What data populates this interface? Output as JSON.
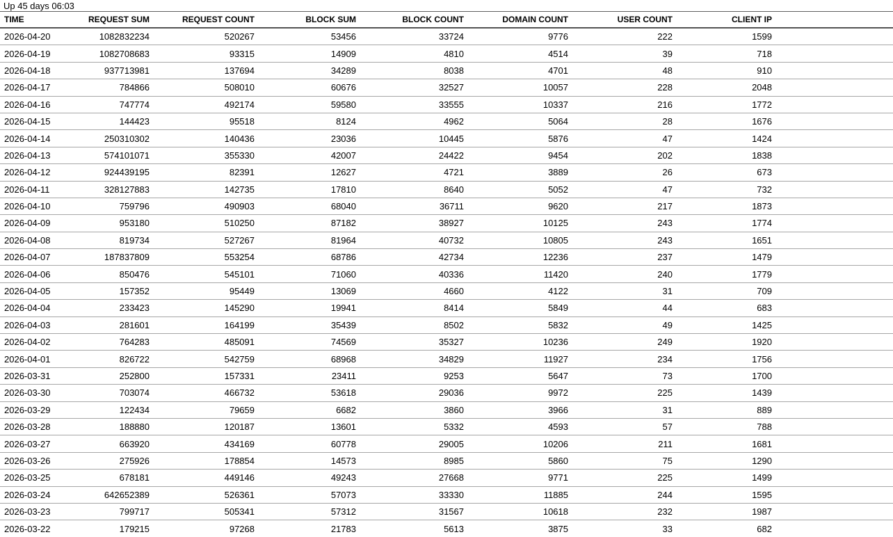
{
  "title": "Up 45 days 06:03",
  "colors": {
    "background": "#ffffff",
    "text": "#000000",
    "title_rule": "#5f5f5f",
    "header_rule": "#525252",
    "row_separator": "#a6a6a6"
  },
  "table": {
    "columns": [
      {
        "id": "time",
        "label": "TIME",
        "align": "left"
      },
      {
        "id": "request-sum",
        "label": "REQUEST SUM",
        "align": "right"
      },
      {
        "id": "request-count",
        "label": "REQUEST COUNT",
        "align": "right"
      },
      {
        "id": "block-sum",
        "label": "BLOCK SUM",
        "align": "right"
      },
      {
        "id": "block-count",
        "label": "BLOCK COUNT",
        "align": "right"
      },
      {
        "id": "domain-count",
        "label": "DOMAIN COUNT",
        "align": "right"
      },
      {
        "id": "user-count",
        "label": "USER COUNT",
        "align": "right"
      },
      {
        "id": "client-ip",
        "label": "CLIENT IP",
        "align": "right"
      }
    ],
    "rows": [
      [
        "2026-04-20",
        "1082832234",
        "520267",
        "53456",
        "33724",
        "9776",
        "222",
        "1599"
      ],
      [
        "2026-04-19",
        "1082708683",
        "93315",
        "14909",
        "4810",
        "4514",
        "39",
        "718"
      ],
      [
        "2026-04-18",
        "937713981",
        "137694",
        "34289",
        "8038",
        "4701",
        "48",
        "910"
      ],
      [
        "2026-04-17",
        "784866",
        "508010",
        "60676",
        "32527",
        "10057",
        "228",
        "2048"
      ],
      [
        "2026-04-16",
        "747774",
        "492174",
        "59580",
        "33555",
        "10337",
        "216",
        "1772"
      ],
      [
        "2026-04-15",
        "144423",
        "95518",
        "8124",
        "4962",
        "5064",
        "28",
        "1676"
      ],
      [
        "2026-04-14",
        "250310302",
        "140436",
        "23036",
        "10445",
        "5876",
        "47",
        "1424"
      ],
      [
        "2026-04-13",
        "574101071",
        "355330",
        "42007",
        "24422",
        "9454",
        "202",
        "1838"
      ],
      [
        "2026-04-12",
        "924439195",
        "82391",
        "12627",
        "4721",
        "3889",
        "26",
        "673"
      ],
      [
        "2026-04-11",
        "328127883",
        "142735",
        "17810",
        "8640",
        "5052",
        "47",
        "732"
      ],
      [
        "2026-04-10",
        "759796",
        "490903",
        "68040",
        "36711",
        "9620",
        "217",
        "1873"
      ],
      [
        "2026-04-09",
        "953180",
        "510250",
        "87182",
        "38927",
        "10125",
        "243",
        "1774"
      ],
      [
        "2026-04-08",
        "819734",
        "527267",
        "81964",
        "40732",
        "10805",
        "243",
        "1651"
      ],
      [
        "2026-04-07",
        "187837809",
        "553254",
        "68786",
        "42734",
        "12236",
        "237",
        "1479"
      ],
      [
        "2026-04-06",
        "850476",
        "545101",
        "71060",
        "40336",
        "11420",
        "240",
        "1779"
      ],
      [
        "2026-04-05",
        "157352",
        "95449",
        "13069",
        "4660",
        "4122",
        "31",
        "709"
      ],
      [
        "2026-04-04",
        "233423",
        "145290",
        "19941",
        "8414",
        "5849",
        "44",
        "683"
      ],
      [
        "2026-04-03",
        "281601",
        "164199",
        "35439",
        "8502",
        "5832",
        "49",
        "1425"
      ],
      [
        "2026-04-02",
        "764283",
        "485091",
        "74569",
        "35327",
        "10236",
        "249",
        "1920"
      ],
      [
        "2026-04-01",
        "826722",
        "542759",
        "68968",
        "34829",
        "11927",
        "234",
        "1756"
      ],
      [
        "2026-03-31",
        "252800",
        "157331",
        "23411",
        "9253",
        "5647",
        "73",
        "1700"
      ],
      [
        "2026-03-30",
        "703074",
        "466732",
        "53618",
        "29036",
        "9972",
        "225",
        "1439"
      ],
      [
        "2026-03-29",
        "122434",
        "79659",
        "6682",
        "3860",
        "3966",
        "31",
        "889"
      ],
      [
        "2026-03-28",
        "188880",
        "120187",
        "13601",
        "5332",
        "4593",
        "57",
        "788"
      ],
      [
        "2026-03-27",
        "663920",
        "434169",
        "60778",
        "29005",
        "10206",
        "211",
        "1681"
      ],
      [
        "2026-03-26",
        "275926",
        "178854",
        "14573",
        "8985",
        "5860",
        "75",
        "1290"
      ],
      [
        "2026-03-25",
        "678181",
        "449146",
        "49243",
        "27668",
        "9771",
        "225",
        "1499"
      ],
      [
        "2026-03-24",
        "642652389",
        "526361",
        "57073",
        "33330",
        "11885",
        "244",
        "1595"
      ],
      [
        "2026-03-23",
        "799717",
        "505341",
        "57312",
        "31567",
        "10618",
        "232",
        "1987"
      ],
      [
        "2026-03-22",
        "179215",
        "97268",
        "21783",
        "5613",
        "3875",
        "33",
        "682"
      ]
    ]
  }
}
